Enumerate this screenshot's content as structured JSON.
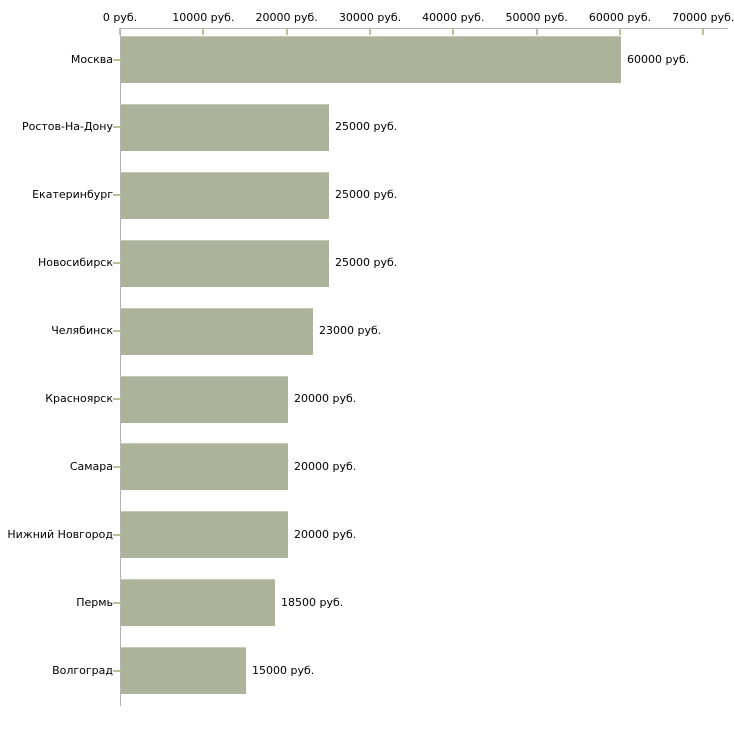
{
  "chart_data": {
    "type": "bar",
    "orientation": "horizontal",
    "title": "",
    "xlabel": "",
    "ylabel": "",
    "unit": "руб.",
    "xlim": [
      0,
      70000
    ],
    "x_ticks": [
      0,
      10000,
      20000,
      30000,
      40000,
      50000,
      60000,
      70000
    ],
    "x_tick_labels": [
      "0 руб.",
      "10000 руб.",
      "20000 руб.",
      "30000 руб.",
      "40000 руб.",
      "50000 руб.",
      "60000 руб.",
      "70000 руб."
    ],
    "categories": [
      "Москва",
      "Ростов-На-Дону",
      "Екатеринбург",
      "Новосибирск",
      "Челябинск",
      "Красноярск",
      "Самара",
      "Нижний Новгород",
      "Пермь",
      "Волгоград"
    ],
    "values": [
      60000,
      25000,
      25000,
      25000,
      23000,
      20000,
      20000,
      20000,
      18500,
      15000
    ],
    "value_labels": [
      "60000 руб.",
      "25000 руб.",
      "25000 руб.",
      "25000 руб.",
      "23000 руб.",
      "20000 руб.",
      "20000 руб.",
      "20000 руб.",
      "18500 руб.",
      "15000 руб."
    ],
    "grid": false,
    "legend": false,
    "colors": {
      "bar_fill": "#adb29a",
      "bar_top_highlight": "#c6cab4",
      "axis_line": "#b3b3b3",
      "tick_mark": "#bdbf95",
      "text": "#000000",
      "background": "#ffffff"
    }
  }
}
